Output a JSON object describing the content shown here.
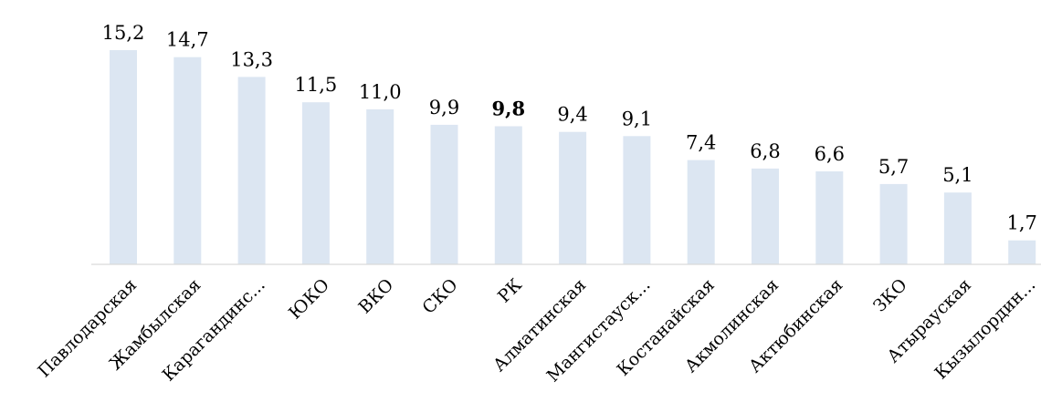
{
  "chart_data": {
    "type": "bar",
    "categories": [
      "Павлодарская",
      "Жамбылская",
      "Карагандинс...",
      "ЮКО",
      "ВКО",
      "СКО",
      "РК",
      "Алматинская",
      "Мангистауск...",
      "Костанайская",
      "Акмолинская",
      "Актюбинская",
      "ЗКО",
      "Атырауская",
      "Кызылордин..."
    ],
    "values": [
      15.2,
      14.7,
      13.3,
      11.5,
      11.0,
      9.9,
      9.8,
      9.4,
      9.1,
      7.4,
      6.8,
      6.6,
      5.7,
      5.1,
      1.7
    ],
    "value_labels": [
      "15,2",
      "14,7",
      "13,3",
      "11,5",
      "11,0",
      "9,9",
      "9,8",
      "9,4",
      "9,1",
      "7,4",
      "6,8",
      "6,6",
      "5,7",
      "5,1",
      "1,7"
    ],
    "highlight_category": "РК",
    "bar_color": "#dce6f2",
    "title": "",
    "xlabel": "",
    "ylabel": "",
    "ylim": [
      0,
      15.2
    ],
    "grid": false,
    "legend": "none"
  }
}
